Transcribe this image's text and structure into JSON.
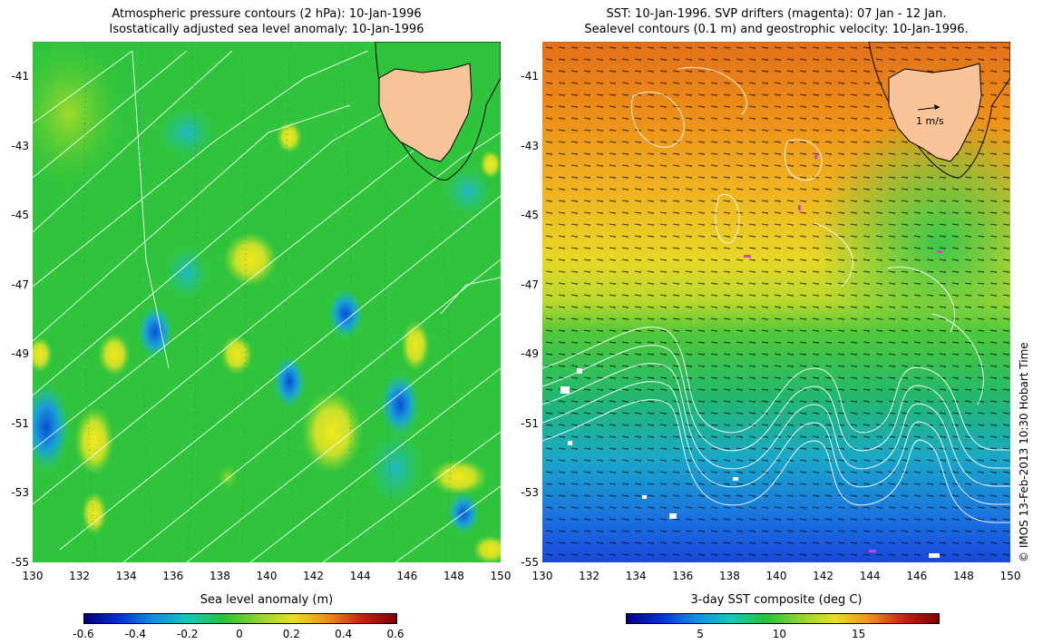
{
  "left_panel": {
    "title_line1": "Atmospheric pressure contours (2 hPa): 10-Jan-1996",
    "title_line2": "Isostatically adjusted sea level anomaly: 10-Jan-1996",
    "colorbar_title": "Sea level anomaly (m)",
    "colorbar_ticks": [
      "-0.6",
      "-0.4",
      "-0.2",
      "0",
      "0.2",
      "0.4",
      "0.6"
    ]
  },
  "right_panel": {
    "title_line1": "SST: 10-Jan-1996. SVP drifters (magenta): 07 Jan - 12 Jan.",
    "title_line2": "Sealevel contours (0.1 m) and geostrophic velocity: 10-Jan-1996.",
    "colorbar_title": "3-day SST composite (deg C)",
    "colorbar_ticks": [
      "5",
      "10",
      "15"
    ],
    "velocity_scale_label": "1 m/s"
  },
  "credit": "© IMOS 13-Feb-2013 10:30 Hobart Time",
  "map": {
    "lon_range": [
      130,
      150
    ],
    "lat_range": [
      -55,
      -40
    ],
    "lat_ticks": [
      "-41",
      "-43",
      "-45",
      "-47",
      "-49",
      "-51",
      "-53",
      "-55"
    ],
    "lon_ticks": [
      "130",
      "132",
      "134",
      "136",
      "138",
      "140",
      "142",
      "144",
      "146",
      "148",
      "150"
    ],
    "land_label": "Tasmania",
    "land_color": "#f9c499",
    "ocean_base_color": "#22c43a"
  }
}
